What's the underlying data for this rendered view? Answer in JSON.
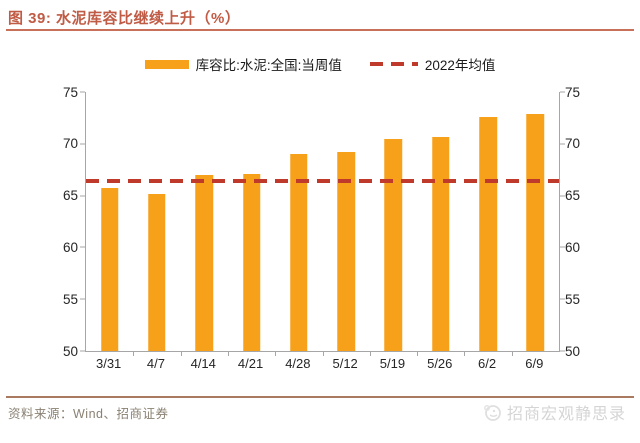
{
  "figure": {
    "title": "图 39: 水泥库容比继续上升（%）"
  },
  "legend": {
    "bar_label": "库容比:水泥:全国:当周值",
    "line_label": "2022年均值"
  },
  "footer": {
    "source": "资料来源：Wind、招商证券",
    "watermark": "招商宏观静思录"
  },
  "colors": {
    "bar": "#F7A11A",
    "avg_line": "#C03A2B",
    "title": "#C05B45",
    "rule_top": "#C8705A",
    "rule_bottom": "#AA7A60",
    "axis": "#A6A6A6",
    "tick_label": "#262626",
    "source_text": "#8A8173",
    "watermark": "#D5D5D5"
  },
  "chart_data": {
    "type": "bar",
    "title": "水泥库容比继续上升（%）",
    "categories": [
      "3/31",
      "4/7",
      "4/14",
      "4/21",
      "4/28",
      "5/12",
      "5/19",
      "5/26",
      "6/2",
      "6/9"
    ],
    "series": [
      {
        "name": "库容比:水泥:全国:当周值",
        "type": "bar",
        "values": [
          65.7,
          65.2,
          67.0,
          67.1,
          69.0,
          69.2,
          70.5,
          70.7,
          72.6,
          72.9
        ]
      },
      {
        "name": "2022年均值",
        "type": "dashed-line",
        "value": 66.4
      }
    ],
    "xlabel": "",
    "ylabel": "",
    "ylim": [
      50,
      75
    ],
    "yticks": [
      50,
      55,
      60,
      65,
      70,
      75
    ],
    "grid": false,
    "legend_position": "top",
    "dual_y_axis": true
  }
}
